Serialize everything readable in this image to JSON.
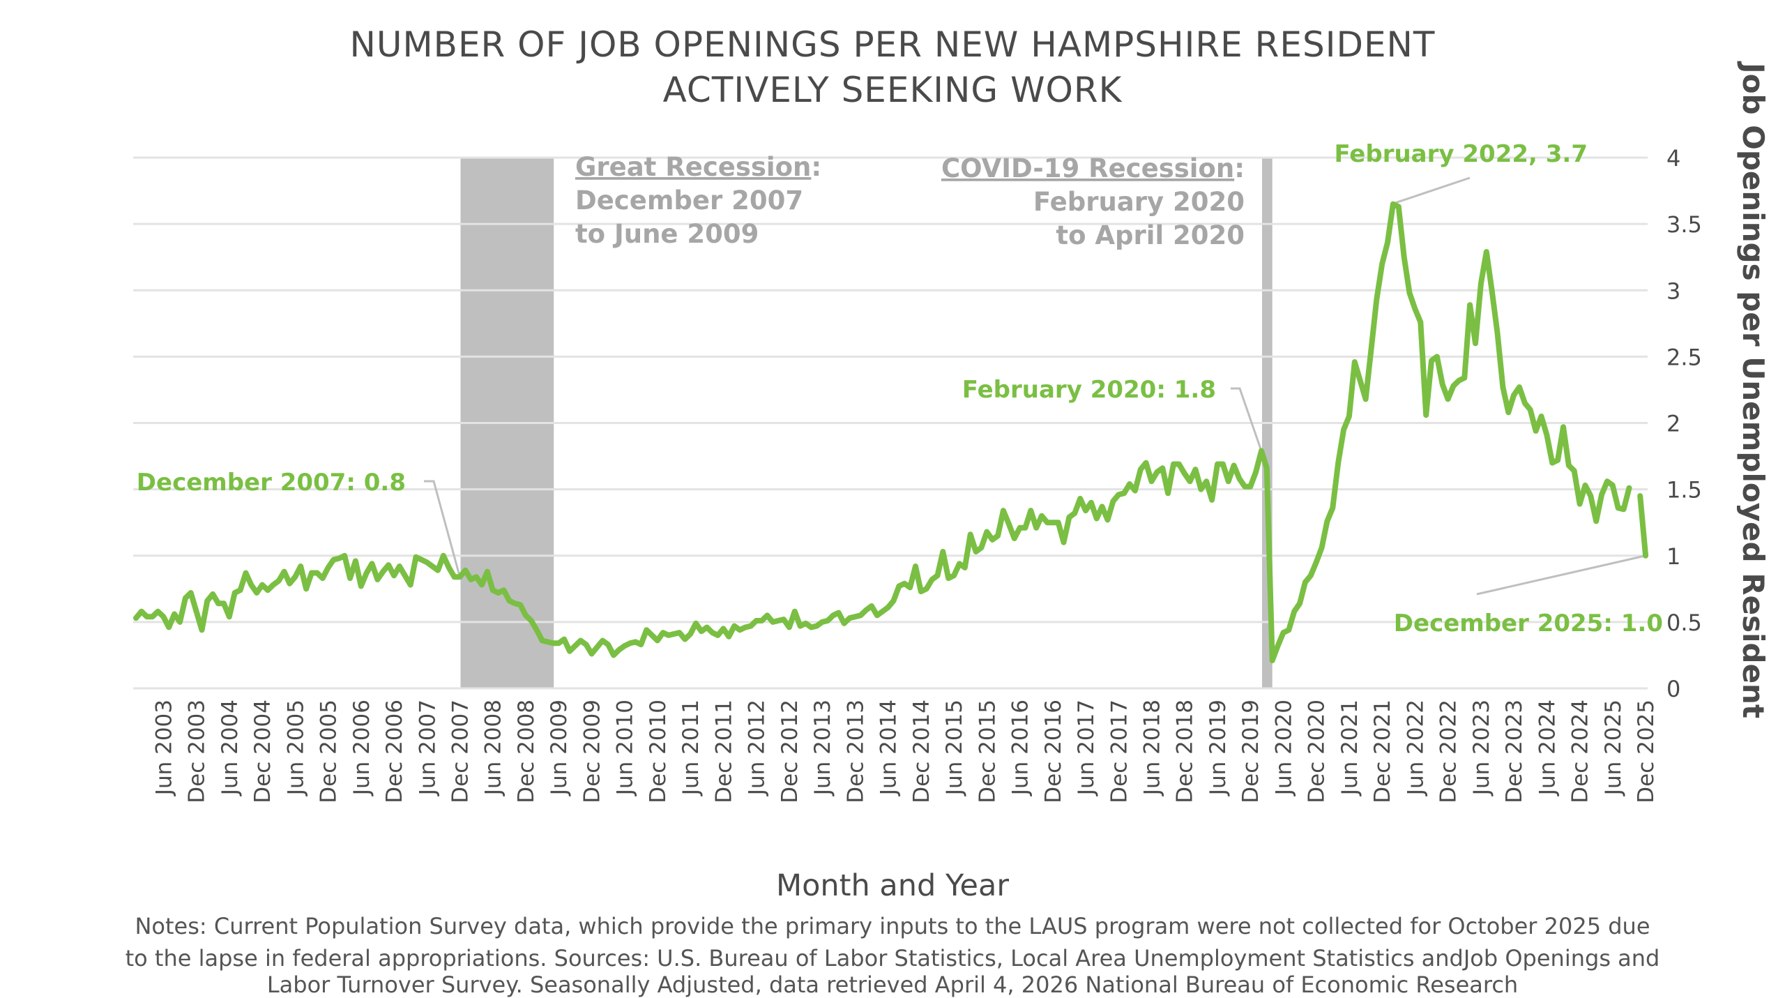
{
  "chart_data": {
    "type": "line",
    "title_lines": [
      "NUMBER OF JOB OPENINGS PER NEW HAMPSHIRE RESIDENT",
      "ACTIVELY SEEKING WORK"
    ],
    "xlabel": "Month and Year",
    "ylabel": "Job Openings per Unemployed Resident",
    "ylim": [
      0,
      4
    ],
    "y_ticks": [
      "0",
      "0.5",
      "1",
      "1.5",
      "2",
      "2.5",
      "3",
      "3.5",
      "4"
    ],
    "y_tick_values": [
      0,
      0.5,
      1,
      1.5,
      2,
      2.5,
      3,
      3.5,
      4
    ],
    "grid": true,
    "y_axis_side": "right",
    "x_start": "Jan 2003",
    "x_end": "Dec 2025",
    "x_ticks": [
      "Jun 2003",
      "Dec 2003",
      "Jun 2004",
      "Dec 2004",
      "Jun 2005",
      "Dec 2005",
      "Jun 2006",
      "Dec 2006",
      "Jun 2007",
      "Dec 2007",
      "Jun 2008",
      "Dec 2008",
      "Jun 2009",
      "Dec 2009",
      "Jun 2010",
      "Dec 2010",
      "Jun 2011",
      "Dec 2011",
      "Jun 2012",
      "Dec 2012",
      "Jun 2013",
      "Dec 2013",
      "Jun 2014",
      "Dec 2014",
      "Jun 2015",
      "Dec 2015",
      "Jun 2016",
      "Dec 2016",
      "Jun 2017",
      "Dec 2017",
      "Jun 2018",
      "Dec 2018",
      "Jun 2019",
      "Dec 2019",
      "Jun 2020",
      "Dec 2020",
      "Jun 2021",
      "Dec 2021",
      "Jun 2022",
      "Dec 2022",
      "Jun 2023",
      "Dec 2023",
      "Jun 2024",
      "Dec 2024",
      "Jun 2025",
      "Dec 2025"
    ],
    "x_tick_month_index": [
      5,
      11,
      17,
      23,
      29,
      35,
      41,
      47,
      53,
      59,
      65,
      71,
      77,
      83,
      89,
      95,
      101,
      107,
      113,
      119,
      125,
      131,
      137,
      143,
      149,
      155,
      161,
      167,
      173,
      179,
      185,
      191,
      197,
      203,
      209,
      215,
      221,
      227,
      233,
      239,
      245,
      251,
      257,
      263,
      269,
      275
    ],
    "series": [
      {
        "name": "Job openings per unemployed resident",
        "color": "#7abf43",
        "values": [
          0.53,
          0.58,
          0.54,
          0.54,
          0.58,
          0.54,
          0.46,
          0.56,
          0.5,
          0.68,
          0.72,
          0.58,
          0.44,
          0.66,
          0.71,
          0.64,
          0.64,
          0.54,
          0.72,
          0.74,
          0.87,
          0.78,
          0.72,
          0.78,
          0.74,
          0.78,
          0.81,
          0.88,
          0.79,
          0.84,
          0.92,
          0.75,
          0.87,
          0.87,
          0.83,
          0.91,
          0.97,
          0.98,
          1.0,
          0.83,
          0.96,
          0.77,
          0.87,
          0.94,
          0.82,
          0.88,
          0.93,
          0.85,
          0.92,
          0.85,
          0.78,
          0.99,
          0.97,
          0.95,
          0.92,
          0.89,
          1.0,
          0.91,
          0.84,
          0.84,
          0.89,
          0.82,
          0.84,
          0.78,
          0.88,
          0.74,
          0.72,
          0.74,
          0.66,
          0.64,
          0.63,
          0.55,
          0.51,
          0.44,
          0.36,
          0.35,
          0.34,
          0.34,
          0.37,
          0.28,
          0.32,
          0.36,
          0.33,
          0.26,
          0.31,
          0.36,
          0.33,
          0.25,
          0.29,
          0.32,
          0.34,
          0.35,
          0.33,
          0.44,
          0.4,
          0.36,
          0.42,
          0.4,
          0.41,
          0.42,
          0.37,
          0.41,
          0.49,
          0.43,
          0.46,
          0.42,
          0.4,
          0.45,
          0.39,
          0.47,
          0.44,
          0.46,
          0.47,
          0.51,
          0.51,
          0.55,
          0.5,
          0.51,
          0.52,
          0.46,
          0.58,
          0.47,
          0.49,
          0.46,
          0.47,
          0.5,
          0.51,
          0.55,
          0.57,
          0.49,
          0.53,
          0.54,
          0.55,
          0.59,
          0.62,
          0.55,
          0.58,
          0.61,
          0.66,
          0.77,
          0.79,
          0.76,
          0.92,
          0.73,
          0.75,
          0.82,
          0.85,
          1.03,
          0.83,
          0.85,
          0.94,
          0.91,
          1.16,
          1.03,
          1.06,
          1.18,
          1.12,
          1.15,
          1.34,
          1.24,
          1.13,
          1.21,
          1.21,
          1.34,
          1.21,
          1.3,
          1.25,
          1.25,
          1.25,
          1.1,
          1.29,
          1.32,
          1.43,
          1.34,
          1.4,
          1.28,
          1.37,
          1.27,
          1.41,
          1.46,
          1.47,
          1.54,
          1.49,
          1.65,
          1.7,
          1.56,
          1.63,
          1.66,
          1.47,
          1.69,
          1.69,
          1.62,
          1.56,
          1.65,
          1.5,
          1.56,
          1.42,
          1.69,
          1.69,
          1.56,
          1.68,
          1.58,
          1.52,
          1.52,
          1.63,
          1.79,
          1.66,
          0.21,
          0.32,
          0.42,
          0.44,
          0.58,
          0.64,
          0.8,
          0.85,
          0.95,
          1.06,
          1.26,
          1.36,
          1.7,
          1.95,
          2.05,
          2.46,
          2.32,
          2.18,
          2.55,
          2.93,
          3.2,
          3.36,
          3.65,
          3.63,
          3.25,
          2.98,
          2.86,
          2.76,
          2.06,
          2.47,
          2.5,
          2.29,
          2.18,
          2.28,
          2.32,
          2.34,
          2.89,
          2.6,
          3.05,
          3.29,
          3.0,
          2.68,
          2.27,
          2.08,
          2.21,
          2.27,
          2.15,
          2.1,
          1.94,
          2.05,
          1.91,
          1.7,
          1.72,
          1.97,
          1.68,
          1.64,
          1.39,
          1.53,
          1.45,
          1.26,
          1.46,
          1.56,
          1.53,
          1.36,
          1.35,
          1.51,
          null,
          1.45,
          1.0
        ]
      }
    ],
    "shaded_periods": [
      {
        "name": "Great Recession",
        "start_month_index": 59,
        "end_month_index": 77
      },
      {
        "name": "COVID-19 Recession",
        "start_month_index": 205,
        "end_month_index": 207
      }
    ],
    "annotations": [
      {
        "text": "December 2007: 0.8",
        "month_index": 59,
        "value": 0.84
      },
      {
        "text": "February 2020: 1.8",
        "month_index": 205,
        "value": 1.79
      },
      {
        "text": "February 2022, 3.7",
        "month_index": 229,
        "value": 3.65
      },
      {
        "text": "December 2025: 1.0",
        "month_index": 275,
        "value": 1.0
      }
    ],
    "recession_labels": [
      {
        "heading": "Great Recession",
        "colon": ":",
        "line2": "December 2007",
        "line3": "to June 2009"
      },
      {
        "heading": "COVID-19 Recession",
        "colon": ":",
        "line2": "February 2020",
        "line3": "to April 2020"
      }
    ],
    "notes": [
      "Notes: Current Population Survey data, which provide the primary inputs to the LAUS program were not collected for October 2025 due",
      "to the lapse in federal appropriations. Sources: U.S. Bureau of Labor Statistics, Local Area Unemployment Statistics andJob Openings and",
      "Labor Turnover Survey. Seasonally Adjusted, data retrieved April 4, 2026 National Bureau of Economic Research"
    ],
    "colors": {
      "line": "#7abf43",
      "annotation": "#7abf43",
      "recession_band": "#bfbfbf",
      "recession_text": "#a6a6a6",
      "grid": "#e3e3e3",
      "text": "#4a4a4a",
      "leader": "#bfbfbf"
    }
  }
}
